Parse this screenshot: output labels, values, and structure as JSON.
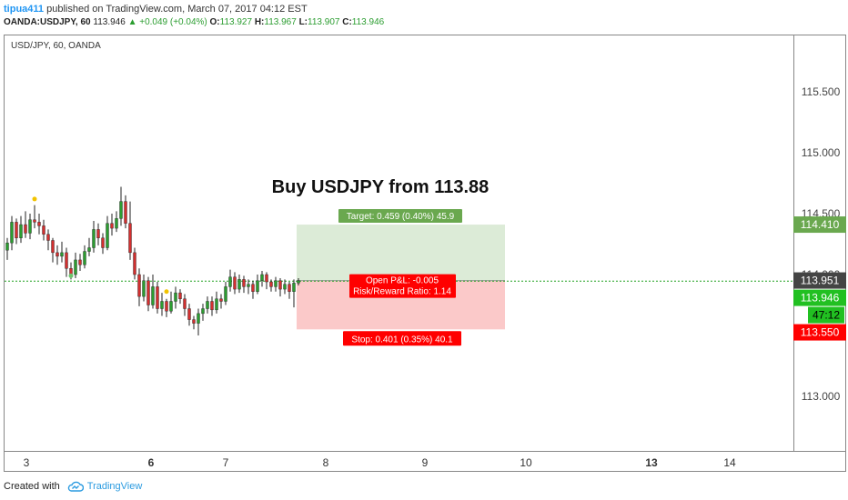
{
  "header": {
    "user": "tipua411",
    "published_text": " published on TradingView.com, March 07, 2017 04:12 EST",
    "symbol": "OANDA:USDJPY, 60",
    "last": "113.946",
    "change": "▲ +0.049 (+0.04%)",
    "o_label": "O:",
    "o_value": "113.927",
    "h_label": "H:",
    "h_value": "113.967",
    "l_label": "L:",
    "l_value": "113.907",
    "c_label": "C:",
    "c_value": "113.946"
  },
  "footer": {
    "created_with": "Created with",
    "brand": "TradingView"
  },
  "colors": {
    "up": "#53b987",
    "down": "#eb4d5c",
    "up_body": "#2b9d30",
    "down_body": "#d32f2f",
    "target_fill": "#dcebd7",
    "stop_fill": "#fbc9c9",
    "target_label": "#6aa84f",
    "stop_label": "#ff0000",
    "current_line": "#21a021",
    "grid_text": "#444"
  },
  "chart_data": {
    "type": "candlestick",
    "title": "USD/JPY, 60, OANDA",
    "annotation": "Buy USDJPY from 113.88",
    "ylim": [
      112.6,
      115.9
    ],
    "y_ticks": [
      "115.500",
      "115.000",
      "114.500",
      "114.000",
      "113.000"
    ],
    "x_ticks": [
      "3",
      "6",
      "7",
      "8",
      "9",
      "10",
      "13",
      "14"
    ],
    "x_ticks_bold": [
      "6",
      "13"
    ],
    "price_labels": [
      {
        "value": "114.410",
        "price": 114.41,
        "color": "#6aa84f"
      },
      {
        "value": "113.951",
        "price": 113.951,
        "color": "#444444"
      },
      {
        "value": "113.946",
        "price": 113.946,
        "color": "#21c021"
      },
      {
        "value": "47:12",
        "price": 113.82,
        "color": "#21c021"
      },
      {
        "value": "113.550",
        "price": 113.55,
        "color": "#ff0000"
      }
    ],
    "position": {
      "entry": 113.951,
      "target": 114.41,
      "stop": 113.55,
      "target_label": "Target: 0.459 (0.40%) 45.9",
      "stop_label": "Stop: 0.401 (0.35%) 40.1",
      "pnl_label": "Open P&L: -0.005",
      "rr_label": "Risk/Reward Ratio: 1.14"
    },
    "candles": [
      [
        114.2,
        114.26,
        114.3,
        114.12
      ],
      [
        114.26,
        114.43,
        114.48,
        114.2
      ],
      [
        114.43,
        114.3,
        114.46,
        114.25
      ],
      [
        114.3,
        114.41,
        114.48,
        114.26
      ],
      [
        114.41,
        114.34,
        114.52,
        114.3
      ],
      [
        114.34,
        114.45,
        114.5,
        114.29
      ],
      [
        114.45,
        114.43,
        114.57,
        114.38
      ],
      [
        114.43,
        114.4,
        114.5,
        114.33
      ],
      [
        114.4,
        114.33,
        114.45,
        114.28
      ],
      [
        114.33,
        114.28,
        114.37,
        114.2
      ],
      [
        114.28,
        114.18,
        114.3,
        114.1
      ],
      [
        114.18,
        114.15,
        114.24,
        114.08
      ],
      [
        114.15,
        114.18,
        114.27,
        114.1
      ],
      [
        114.18,
        114.05,
        114.22,
        113.98
      ],
      [
        114.05,
        114.0,
        114.1,
        113.96
      ],
      [
        114.0,
        114.12,
        114.18,
        113.97
      ],
      [
        114.12,
        114.08,
        114.17,
        114.03
      ],
      [
        114.08,
        114.19,
        114.24,
        114.05
      ],
      [
        114.19,
        114.22,
        114.3,
        114.15
      ],
      [
        114.22,
        114.37,
        114.44,
        114.18
      ],
      [
        114.37,
        114.3,
        114.42,
        114.24
      ],
      [
        114.3,
        114.22,
        114.34,
        114.17
      ],
      [
        114.22,
        114.42,
        114.48,
        114.2
      ],
      [
        114.42,
        114.38,
        114.5,
        114.32
      ],
      [
        114.38,
        114.46,
        114.52,
        114.35
      ],
      [
        114.46,
        114.6,
        114.72,
        114.4
      ],
      [
        114.6,
        114.42,
        114.65,
        114.38
      ],
      [
        114.42,
        114.18,
        114.6,
        114.12
      ],
      [
        114.18,
        114.0,
        114.22,
        113.96
      ],
      [
        114.0,
        113.82,
        114.05,
        113.74
      ],
      [
        113.82,
        113.95,
        114.0,
        113.78
      ],
      [
        113.95,
        113.75,
        113.98,
        113.7
      ],
      [
        113.75,
        113.9,
        114.0,
        113.72
      ],
      [
        113.9,
        113.72,
        113.94,
        113.68
      ],
      [
        113.72,
        113.78,
        113.85,
        113.66
      ],
      [
        113.78,
        113.7,
        113.8,
        113.65
      ],
      [
        113.7,
        113.78,
        113.86,
        113.68
      ],
      [
        113.78,
        113.85,
        113.9,
        113.72
      ],
      [
        113.85,
        113.8,
        113.88,
        113.76
      ],
      [
        113.8,
        113.72,
        113.84,
        113.66
      ],
      [
        113.72,
        113.63,
        113.76,
        113.58
      ],
      [
        113.63,
        113.6,
        113.66,
        113.55
      ],
      [
        113.6,
        113.68,
        113.72,
        113.5
      ],
      [
        113.68,
        113.72,
        113.76,
        113.62
      ],
      [
        113.72,
        113.78,
        113.82,
        113.68
      ],
      [
        113.78,
        113.71,
        113.82,
        113.66
      ],
      [
        113.71,
        113.8,
        113.86,
        113.68
      ],
      [
        113.8,
        113.78,
        113.84,
        113.72
      ],
      [
        113.78,
        113.9,
        113.94,
        113.75
      ],
      [
        113.9,
        113.98,
        114.04,
        113.86
      ],
      [
        113.98,
        113.88,
        114.02,
        113.84
      ],
      [
        113.88,
        113.96,
        114.0,
        113.85
      ],
      [
        113.96,
        113.9,
        113.99,
        113.85
      ],
      [
        113.9,
        113.92,
        113.96,
        113.84
      ],
      [
        113.92,
        113.86,
        113.95,
        113.8
      ],
      [
        113.86,
        113.95,
        114.0,
        113.84
      ],
      [
        113.95,
        114.0,
        114.03,
        113.9
      ],
      [
        114.0,
        113.94,
        114.02,
        113.88
      ],
      [
        113.94,
        113.9,
        113.96,
        113.86
      ],
      [
        113.9,
        113.95,
        113.98,
        113.86
      ],
      [
        113.95,
        113.88,
        113.97,
        113.82
      ],
      [
        113.88,
        113.92,
        113.96,
        113.84
      ],
      [
        113.92,
        113.86,
        113.94,
        113.8
      ],
      [
        113.86,
        113.93,
        113.96,
        113.73
      ],
      [
        113.93,
        113.95,
        113.97,
        113.91
      ]
    ],
    "markers": [
      {
        "index": 6,
        "price": 114.62,
        "color": "#f2c300"
      },
      {
        "index": 14,
        "price": 113.99,
        "color": "#6cc46c"
      },
      {
        "index": 35,
        "price": 113.86,
        "color": "#f2c300"
      }
    ]
  }
}
